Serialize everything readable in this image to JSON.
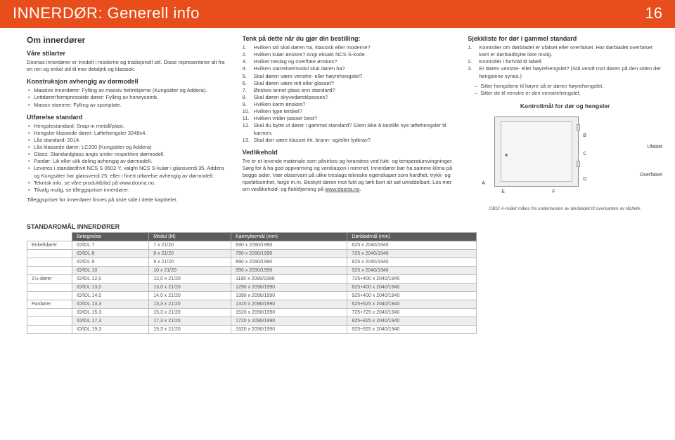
{
  "header": {
    "title": "INNERDØR: Generell info",
    "page_number": "16"
  },
  "col1": {
    "h2": "Om innerdører",
    "stilarter_h": "Våre stilarter",
    "stilarter_p": "Doorias innerdører er inndelt i moderne og tradisjonell stil. Disse representerer alt fra en ren og enkel stil til mer detaljrik og klassisk.",
    "konstr_h": "Konstruksjon avhengig av dørmodell",
    "konstr_items": [
      "Massive innerdører: Fylling av massiv heltrekjerne (Kungsäter og Addera).",
      "Lettdører/formpressede dører: Fylling av honeycomb.",
      "Massiv stamme: Fylling av sponplate."
    ],
    "utfor_h": "Utførelse standard",
    "utfor_items": [
      "Hengslestandard: Snap-in metall/plast.",
      "Hengsler klassede dører: Løftehengsler 3248x4.",
      "Lås standard: 2014.",
      "Lås klassede dører: LC200 (Kungsäter og Addera)",
      "Glass: Standardglass angis under respektive dørmodell.",
      "Pardør: Lik eller ulik deling avhengig av dørmodell.",
      "Leveres i standardhvit NCS S 0502-Y, valgfri NCS S-kulør i glansverdi 35, Addera og Kungsäter har glansverdi 25, eller i finert utførelse avhengig av dørmodell.",
      "Teknisk info, se våre produktblad på www.dooria.no.",
      "Tilvalg mulig, se tilleggspriser innerdører."
    ],
    "tillegg_p": "Tilleggspriser for innerdører finnes på siste side i dette kapittelet."
  },
  "col2": {
    "tenk_h": "Tenk på dette når du gjør din bestilling:",
    "tenk_items": [
      "Hvilken stil skal døren ha, klassisk eller moderne?",
      "Hvilken kulør ønskes? Angi eksakt NCS S-kode.",
      "Hvilket treslag og overflate ønskes?",
      "Hvilken størrelse/modul skal døren ha?",
      "Skal døren være venstre- eller høyrehengslet?",
      "Skal døren være tett eller glasset?",
      "Ønskes annet glass enn standard?",
      "Skal døren skyvedørstilpasses?",
      "Hvilken karm ønskes?",
      "Hvilken type terskel?",
      "Hvilken vrider passer best?",
      "Skal du bytte ut dører i gammel standard? Glem ikke å bestille nye løftehengsler til karmen.",
      "Skal den være klasset iht. brann- og/eller lydkrav?"
    ],
    "vedl_h": "Vedlikehold",
    "vedl_p1": "Tre er et levende materiale som påvirkes og forandres ved fukt- og temperatursvingninger. Sørg for å ha god oppvarming og ventilasjon i rommet. Innerdører bør ha samme klima på begge sider. Vær observant på ulike treslags tekniske egenskaper som hardhet, trykk- og ripefølsomhet, farge m.m. Beskytt døren mot fukt og tørk bort alt søl umiddelbart. Les mer om vedlikehold- og flekkfjerning på ",
    "vedl_link": "www.dooria.no"
  },
  "col3": {
    "sjekk_h": "Sjekkliste for dør i gammel standard",
    "sjekk_items": [
      "Kontroller om dørbladet er ufalset eller overfalset. Har dørbladet overfalset kant er dørbladbytte ikke mulig.",
      "Kontrollér i forhold til tabell.",
      "Er døren venstre- eller høyrehengslet? (Stå vendt mot døren på den siden der hengslene synes.)"
    ],
    "sjekk_dash": [
      "Sitter hengslene til høyre så er døren høyrehengslet.",
      "Sitter de til venstre er den venstrehengslet."
    ],
    "diagram_title": "Kontrollmål for dør og hengsler",
    "labels": {
      "ufalset": "Ufalset",
      "overfalset": "Overfalset",
      "a": "A",
      "b": "B",
      "c": "C",
      "d": "D",
      "e": "E",
      "f": "F"
    },
    "obs": "OBS! A-målet måles fra underkanten av dørbladet til overkanten av låsfalle."
  },
  "table": {
    "title": "STANDARDMÅL INNERDØRER",
    "headers": [
      "",
      "Betegnelse",
      "Modul (M)",
      "Karmyttermål (mm)",
      "Dørbladmål (mm)"
    ],
    "rows": [
      {
        "group": "Enkeltdører",
        "b": "ID/IDL 7",
        "m": "7 x 21/20",
        "k": "690 x 2090/1990",
        "d": "625 x 2040/1940"
      },
      {
        "group": "",
        "b": "ID/IDL 8",
        "m": "8 x 21/20",
        "k": "790 x 2090/1990",
        "d": "725 x 2040/1940",
        "striped": true
      },
      {
        "group": "",
        "b": "ID/IDL 9",
        "m": "9 x 21/20",
        "k": "890 x 2090/1990",
        "d": "825 x 2040/1940"
      },
      {
        "group": "",
        "b": "ID/IDL 10",
        "m": "10 x 21/20",
        "k": "990 x 2090/1990",
        "d": "925 x 2040/1940",
        "striped": true
      },
      {
        "group": "1½-dører",
        "b": "ID/IDL 12,0",
        "m": "12,0 x 21/20",
        "k": "1190 x 2090/1990",
        "d": "725+400 x 2040/1940"
      },
      {
        "group": "",
        "b": "ID/IDL 13,0",
        "m": "13,0 x 21/20",
        "k": "1290 x 2090/1990",
        "d": "825+400 x 2040/1940",
        "striped": true
      },
      {
        "group": "",
        "b": "ID/IDL 14,0",
        "m": "14,0 x 21/20",
        "k": "1390 x 2090/1990",
        "d": "925+400 x 2040/1940"
      },
      {
        "group": "Pardører",
        "b": "ID/IDL 13,3",
        "m": "13,3 x 21/20",
        "k": "1320 x 2090/1990",
        "d": "625+625 x 2040/1940",
        "striped": true
      },
      {
        "group": "",
        "b": "ID/IDL 15,3",
        "m": "15,3 x 21/20",
        "k": "1520 x 2090/1990",
        "d": "725+725 x 2040/1940"
      },
      {
        "group": "",
        "b": "ID/IDL 17,3",
        "m": "17,3 x 21/20",
        "k": "1720 x 2090/1990",
        "d": "825+825 x 2040/1940",
        "striped": true
      },
      {
        "group": "",
        "b": "ID/IDL 19,3",
        "m": "19,3 x 21/20",
        "k": "1920 x 2090/1990",
        "d": "925+925 x 2040/1940"
      }
    ]
  },
  "colors": {
    "header_bg": "#e84e1b",
    "table_header_bg": "#5b5b5b",
    "stripe_bg": "#eeeeee",
    "door_fill": "#f0efed",
    "text": "#3a3a3a"
  }
}
